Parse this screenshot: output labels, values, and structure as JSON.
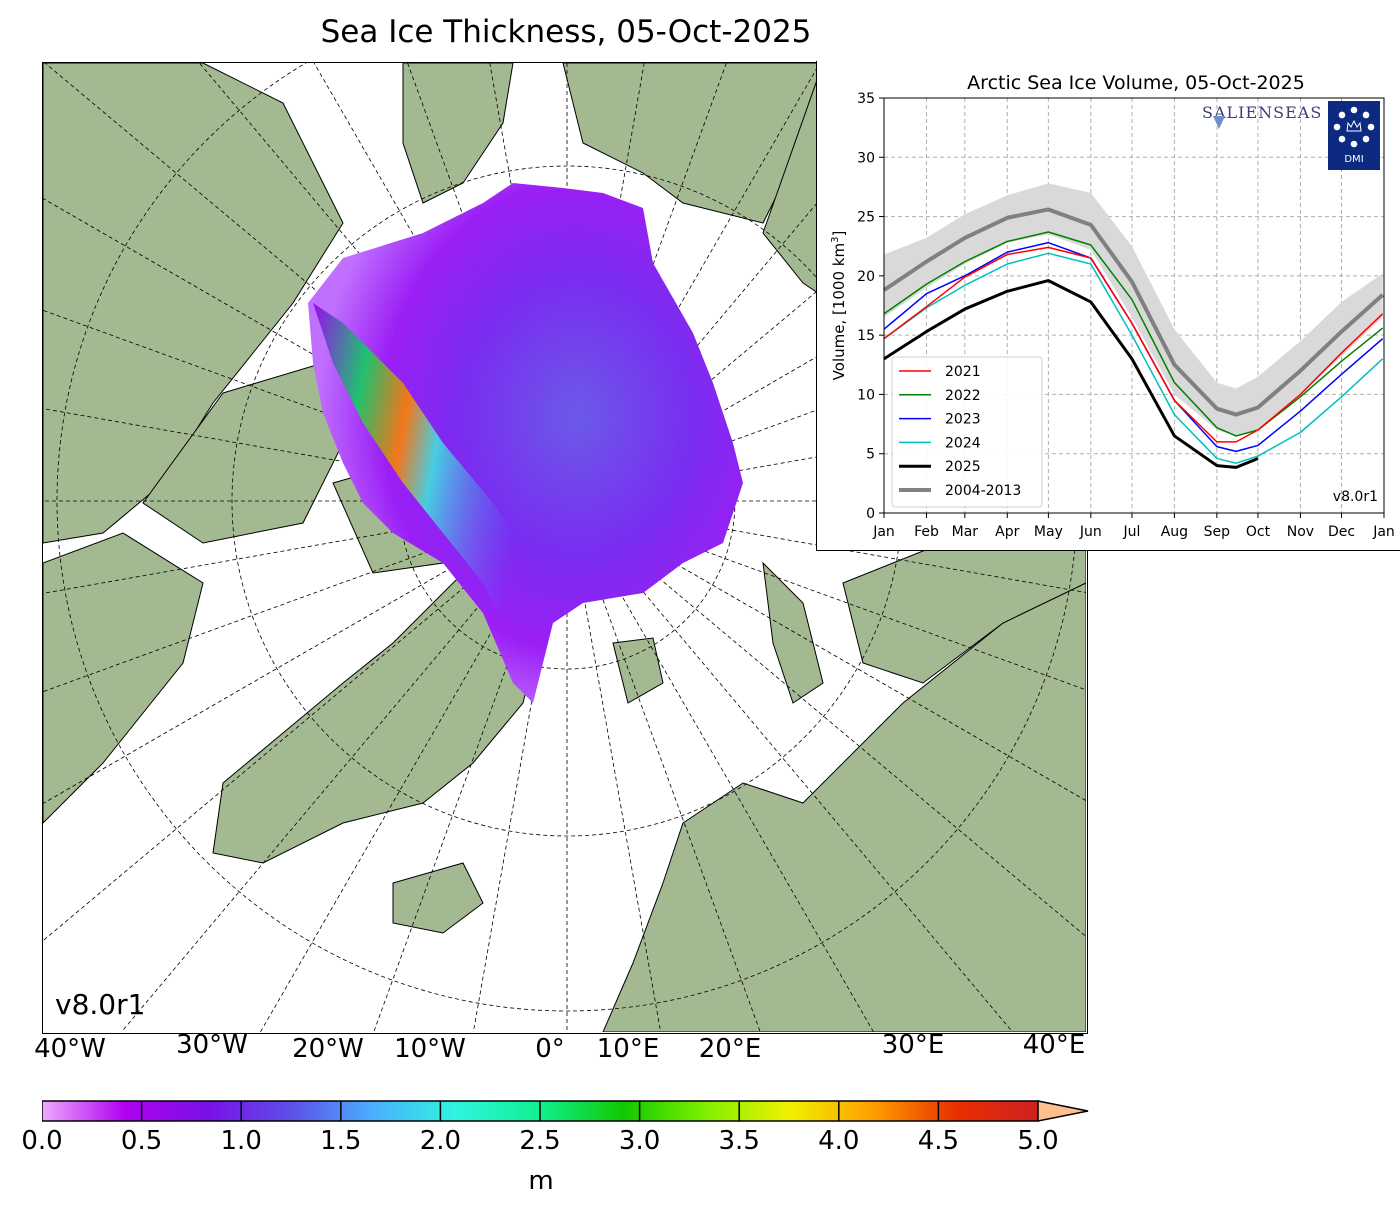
{
  "title": "Sea Ice Thickness, 05-Oct-2025",
  "map": {
    "projection": "north polar stereographic",
    "version": "v8.0r1",
    "longitude_labels": [
      "40°W",
      "30°W",
      "20°W",
      "10°W",
      "0°",
      "10°E",
      "20°E",
      "30°E",
      "40°E"
    ],
    "colors": {
      "land": "#a2b992",
      "ocean": "#ffffff",
      "rivers": "#9db3e8",
      "coast": "#000000"
    }
  },
  "colorbar": {
    "ticks": [
      "0.0",
      "0.5",
      "1.0",
      "1.5",
      "2.0",
      "2.5",
      "3.0",
      "3.5",
      "4.0",
      "4.5",
      "5.0"
    ],
    "range": [
      0,
      5
    ],
    "extend": "max",
    "unit": "m",
    "colors": [
      "#eeaaff",
      "#b000f0",
      "#7a10e8",
      "#5d4fe8",
      "#4ab0ff",
      "#2ff5e0",
      "#10f090",
      "#10c800",
      "#80f000",
      "#f0f000",
      "#ffa000",
      "#e83000",
      "#d02020",
      "#ffc090"
    ]
  },
  "chart_data": {
    "type": "line",
    "title": "Arctic Sea Ice Volume, 05-Oct-2025",
    "ylabel": "Volume, [1000 km³]",
    "ylabel_main": "Volume, [1000 km",
    "ylabel_sup": "3",
    "ylabel_end": "]",
    "ylim": [
      0,
      35
    ],
    "yticks": [
      "0",
      "5",
      "10",
      "15",
      "20",
      "25",
      "30",
      "35"
    ],
    "xticks": [
      "Jan",
      "Feb",
      "Mar",
      "Apr",
      "May",
      "Jun",
      "Jul",
      "Aug",
      "Sep",
      "Oct",
      "Nov",
      "Dec",
      "Jan"
    ],
    "grid": true,
    "legend_position": "lower-left",
    "version": "v8.0r1",
    "logos": [
      "SALIENSEAS",
      "DMI"
    ],
    "x": [
      "01-01",
      "02-01",
      "03-01",
      "04-01",
      "05-01",
      "06-01",
      "07-01",
      "08-01",
      "09-01",
      "09-15",
      "10-01",
      "11-01",
      "12-01",
      "12-31"
    ],
    "band_2004_2013": {
      "lower": [
        16.5,
        19.0,
        21.0,
        22.8,
        23.5,
        22.2,
        16.5,
        10.0,
        7.0,
        6.5,
        7.0,
        10.0,
        13.2,
        16.5
      ],
      "upper": [
        21.8,
        23.2,
        25.2,
        26.8,
        27.8,
        27.0,
        22.5,
        15.5,
        11.0,
        10.5,
        11.5,
        14.5,
        17.8,
        20.2
      ]
    },
    "series": [
      {
        "name": "2021",
        "color": "#ff0000",
        "width": 1.5,
        "values": [
          14.7,
          17.4,
          19.9,
          21.8,
          22.4,
          21.5,
          16.0,
          9.5,
          6.0,
          6.0,
          7.0,
          10.0,
          13.5,
          16.8
        ]
      },
      {
        "name": "2022",
        "color": "#008000",
        "width": 1.5,
        "values": [
          16.8,
          19.3,
          21.2,
          22.9,
          23.7,
          22.6,
          18.0,
          11.0,
          7.2,
          6.5,
          7.0,
          9.8,
          12.8,
          15.6
        ]
      },
      {
        "name": "2023",
        "color": "#0000ff",
        "width": 1.5,
        "values": [
          15.5,
          18.5,
          20.0,
          22.0,
          22.8,
          21.5,
          16.0,
          9.5,
          5.6,
          5.2,
          5.7,
          8.6,
          11.7,
          14.7
        ]
      },
      {
        "name": "2024",
        "color": "#00bfbf",
        "width": 1.5,
        "values": [
          14.7,
          17.3,
          19.2,
          21.0,
          21.9,
          21.0,
          15.0,
          8.3,
          4.6,
          4.2,
          4.8,
          6.8,
          9.8,
          13.0
        ]
      },
      {
        "name": "2025",
        "color": "#000000",
        "width": 3,
        "values": [
          13.0,
          15.3,
          17.2,
          18.7,
          19.6,
          17.8,
          13.0,
          6.5,
          4.0,
          3.85,
          4.6,
          null,
          null,
          null
        ]
      },
      {
        "name": "2004-2013",
        "color": "#808080",
        "width": 4,
        "values": [
          18.8,
          21.2,
          23.2,
          24.9,
          25.6,
          24.3,
          19.5,
          12.5,
          8.8,
          8.3,
          8.9,
          12.0,
          15.3,
          18.4
        ]
      }
    ]
  }
}
